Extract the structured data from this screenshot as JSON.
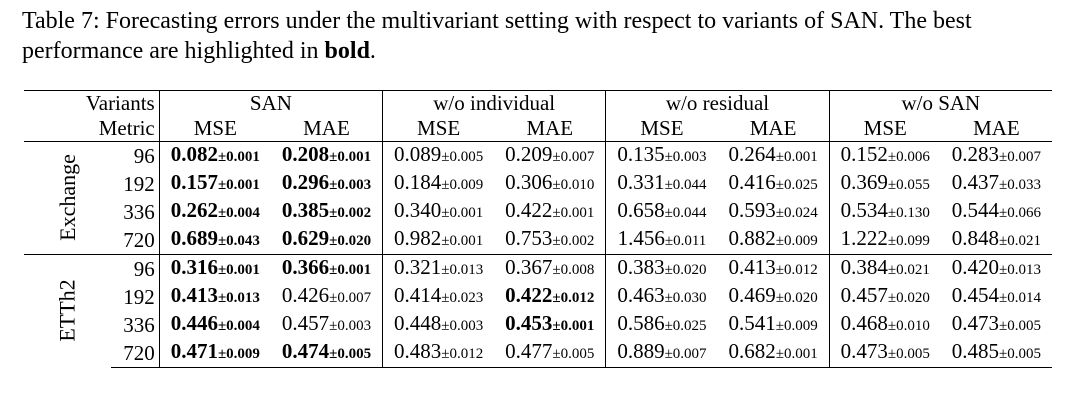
{
  "caption": {
    "prefix": "Table 7: Forecasting errors under the multivariant setting with respect to variants of SAN. The best performance are highlighted in ",
    "bold_word": "bold",
    "suffix": "."
  },
  "header": {
    "variants_label": "Variants",
    "metric_label": "Metric",
    "variants": [
      "SAN",
      "w/o individual",
      "w/o residual",
      "w/o SAN"
    ],
    "metrics": [
      "MSE",
      "MAE"
    ]
  },
  "datasets": [
    {
      "name": "Exchange",
      "rows": [
        {
          "horizon": "96",
          "cells": [
            {
              "v": "0.082",
              "s": "±0.001",
              "bold": true
            },
            {
              "v": "0.208",
              "s": "±0.001",
              "bold": true
            },
            {
              "v": "0.089",
              "s": "±0.005",
              "bold": false
            },
            {
              "v": "0.209",
              "s": "±0.007",
              "bold": false
            },
            {
              "v": "0.135",
              "s": "±0.003",
              "bold": false
            },
            {
              "v": "0.264",
              "s": "±0.001",
              "bold": false
            },
            {
              "v": "0.152",
              "s": "±0.006",
              "bold": false
            },
            {
              "v": "0.283",
              "s": "±0.007",
              "bold": false
            }
          ]
        },
        {
          "horizon": "192",
          "cells": [
            {
              "v": "0.157",
              "s": "±0.001",
              "bold": true
            },
            {
              "v": "0.296",
              "s": "±0.003",
              "bold": true
            },
            {
              "v": "0.184",
              "s": "±0.009",
              "bold": false
            },
            {
              "v": "0.306",
              "s": "±0.010",
              "bold": false
            },
            {
              "v": "0.331",
              "s": "±0.044",
              "bold": false
            },
            {
              "v": "0.416",
              "s": "±0.025",
              "bold": false
            },
            {
              "v": "0.369",
              "s": "±0.055",
              "bold": false
            },
            {
              "v": "0.437",
              "s": "±0.033",
              "bold": false
            }
          ]
        },
        {
          "horizon": "336",
          "cells": [
            {
              "v": "0.262",
              "s": "±0.004",
              "bold": true
            },
            {
              "v": "0.385",
              "s": "±0.002",
              "bold": true
            },
            {
              "v": "0.340",
              "s": "±0.001",
              "bold": false
            },
            {
              "v": "0.422",
              "s": "±0.001",
              "bold": false
            },
            {
              "v": "0.658",
              "s": "±0.044",
              "bold": false
            },
            {
              "v": "0.593",
              "s": "±0.024",
              "bold": false
            },
            {
              "v": "0.534",
              "s": "±0.130",
              "bold": false
            },
            {
              "v": "0.544",
              "s": "±0.066",
              "bold": false
            }
          ]
        },
        {
          "horizon": "720",
          "cells": [
            {
              "v": "0.689",
              "s": "±0.043",
              "bold": true
            },
            {
              "v": "0.629",
              "s": "±0.020",
              "bold": true
            },
            {
              "v": "0.982",
              "s": "±0.001",
              "bold": false
            },
            {
              "v": "0.753",
              "s": "±0.002",
              "bold": false
            },
            {
              "v": "1.456",
              "s": "±0.011",
              "bold": false
            },
            {
              "v": "0.882",
              "s": "±0.009",
              "bold": false
            },
            {
              "v": "1.222",
              "s": "±0.099",
              "bold": false
            },
            {
              "v": "0.848",
              "s": "±0.021",
              "bold": false
            }
          ]
        }
      ]
    },
    {
      "name": "ETTh2",
      "rows": [
        {
          "horizon": "96",
          "cells": [
            {
              "v": "0.316",
              "s": "±0.001",
              "bold": true
            },
            {
              "v": "0.366",
              "s": "±0.001",
              "bold": true
            },
            {
              "v": "0.321",
              "s": "±0.013",
              "bold": false
            },
            {
              "v": "0.367",
              "s": "±0.008",
              "bold": false
            },
            {
              "v": "0.383",
              "s": "±0.020",
              "bold": false
            },
            {
              "v": "0.413",
              "s": "±0.012",
              "bold": false
            },
            {
              "v": "0.384",
              "s": "±0.021",
              "bold": false
            },
            {
              "v": "0.420",
              "s": "±0.013",
              "bold": false
            }
          ]
        },
        {
          "horizon": "192",
          "cells": [
            {
              "v": "0.413",
              "s": "±0.013",
              "bold": true
            },
            {
              "v": "0.426",
              "s": "±0.007",
              "bold": false
            },
            {
              "v": "0.414",
              "s": "±0.023",
              "bold": false
            },
            {
              "v": "0.422",
              "s": "±0.012",
              "bold": true
            },
            {
              "v": "0.463",
              "s": "±0.030",
              "bold": false
            },
            {
              "v": "0.469",
              "s": "±0.020",
              "bold": false
            },
            {
              "v": "0.457",
              "s": "±0.020",
              "bold": false
            },
            {
              "v": "0.454",
              "s": "±0.014",
              "bold": false
            }
          ]
        },
        {
          "horizon": "336",
          "cells": [
            {
              "v": "0.446",
              "s": "±0.004",
              "bold": true
            },
            {
              "v": "0.457",
              "s": "±0.003",
              "bold": false
            },
            {
              "v": "0.448",
              "s": "±0.003",
              "bold": false
            },
            {
              "v": "0.453",
              "s": "±0.001",
              "bold": true
            },
            {
              "v": "0.586",
              "s": "±0.025",
              "bold": false
            },
            {
              "v": "0.541",
              "s": "±0.009",
              "bold": false
            },
            {
              "v": "0.468",
              "s": "±0.010",
              "bold": false
            },
            {
              "v": "0.473",
              "s": "±0.005",
              "bold": false
            }
          ]
        },
        {
          "horizon": "720",
          "cells": [
            {
              "v": "0.471",
              "s": "±0.009",
              "bold": true
            },
            {
              "v": "0.474",
              "s": "±0.005",
              "bold": true
            },
            {
              "v": "0.483",
              "s": "±0.012",
              "bold": false
            },
            {
              "v": "0.477",
              "s": "±0.005",
              "bold": false
            },
            {
              "v": "0.889",
              "s": "±0.007",
              "bold": false
            },
            {
              "v": "0.682",
              "s": "±0.001",
              "bold": false
            },
            {
              "v": "0.473",
              "s": "±0.005",
              "bold": false
            },
            {
              "v": "0.485",
              "s": "±0.005",
              "bold": false
            }
          ]
        }
      ]
    }
  ]
}
